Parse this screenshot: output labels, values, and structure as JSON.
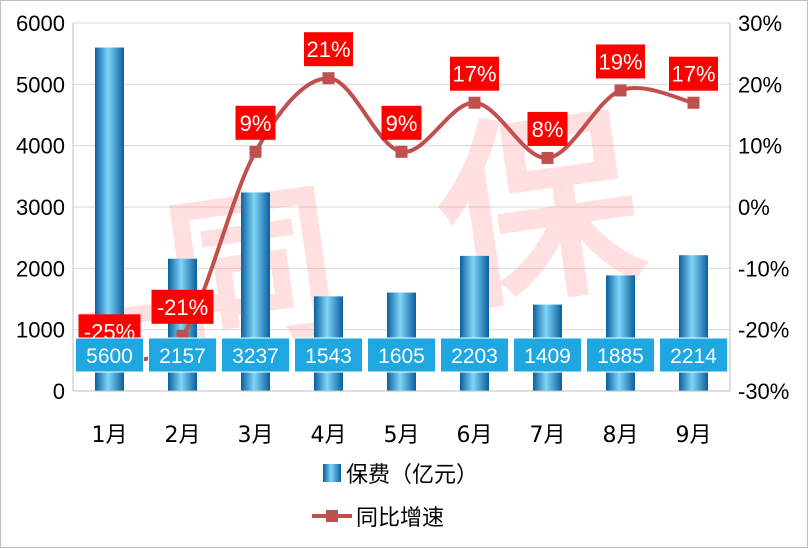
{
  "chart_data": {
    "type": "bar",
    "categories": [
      "1月",
      "2月",
      "3月",
      "4月",
      "5月",
      "6月",
      "7月",
      "8月",
      "9月"
    ],
    "series": [
      {
        "name": "保费（亿元）",
        "type": "bar",
        "axis": "left",
        "values": [
          5600,
          2157,
          3237,
          1543,
          1605,
          2203,
          1409,
          1885,
          2214
        ],
        "labels": [
          "5600",
          "2157",
          "3237",
          "1543",
          "1605",
          "2203",
          "1409",
          "1885",
          "2214"
        ]
      },
      {
        "name": "同比增速",
        "type": "line",
        "axis": "right",
        "values": [
          -25,
          -21,
          9,
          21,
          9,
          17,
          8,
          19,
          17
        ],
        "labels": [
          "-25%",
          "-21%",
          "9%",
          "21%",
          "9%",
          "17%",
          "8%",
          "19%",
          "17%"
        ]
      }
    ],
    "y_left": {
      "ylim": [
        0,
        6000
      ],
      "ticks": [
        "0",
        "1000",
        "2000",
        "3000",
        "4000",
        "5000",
        "6000"
      ]
    },
    "y_right": {
      "ylim": [
        -30,
        30
      ],
      "ticks": [
        "-30%",
        "-20%",
        "-10%",
        "0%",
        "10%",
        "20%",
        "30%"
      ]
    },
    "grid": true,
    "legend_position": "bottom",
    "colors": {
      "bar": "#1a9fd8",
      "bar_dark": "#0a5f9e",
      "bar_light": "#7fd6f7",
      "line": "#c0504d",
      "marker": "#c0504d",
      "pct_label_bg": "#ff0000",
      "val_label_bg": "#1ea7e1",
      "watermark": "#ff7f7f"
    }
  },
  "watermark": {
    "text": "一同保"
  }
}
